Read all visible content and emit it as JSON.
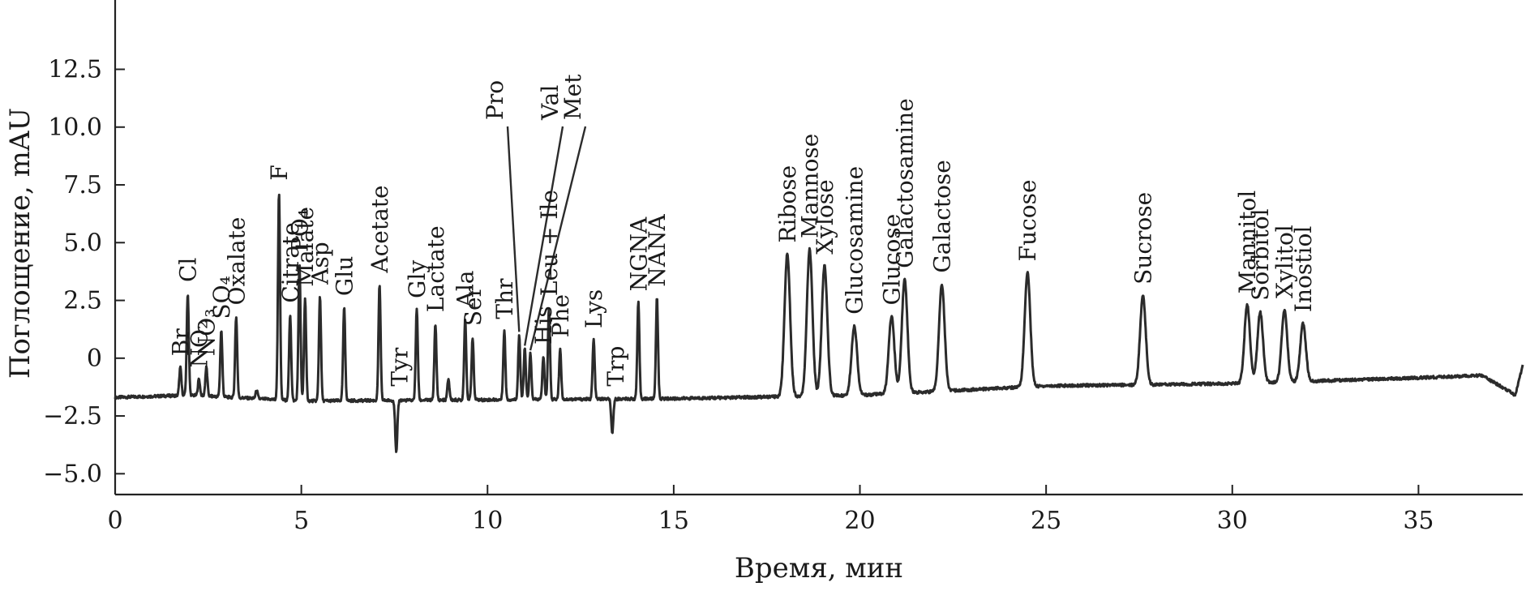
{
  "chart_data": {
    "type": "line",
    "title": "",
    "xlabel": "Время, мин",
    "ylabel": "Поглощение, mAU",
    "xlim": [
      0,
      37.8
    ],
    "ylim": [
      -5.9,
      15.5
    ],
    "xticks": [
      0,
      5,
      10,
      15,
      20,
      25,
      30,
      35
    ],
    "yticks": [
      -5.0,
      -2.5,
      0,
      2.5,
      5.0,
      7.5,
      10.0,
      12.5
    ],
    "ytick_labels": [
      "−5.0",
      "−2.5",
      "0",
      "2.5",
      "5.0",
      "7.5",
      "10.0",
      "12.5"
    ],
    "grid": false,
    "legend": "none",
    "baseline": [
      [
        0,
        -1.7
      ],
      [
        2,
        -1.6
      ],
      [
        5,
        -1.85
      ],
      [
        10,
        -1.8
      ],
      [
        15,
        -1.75
      ],
      [
        20,
        -1.6
      ],
      [
        25,
        -1.2
      ],
      [
        30,
        -1.1
      ],
      [
        35,
        -0.85
      ],
      [
        36.7,
        -0.75
      ],
      [
        37.3,
        -1.3
      ],
      [
        37.6,
        -1.6
      ],
      [
        37.8,
        -0.3
      ]
    ],
    "peaks": [
      {
        "label": "Br",
        "x": 1.75,
        "y": -0.4
      },
      {
        "label": "Cl",
        "x": 1.95,
        "y": 2.8
      },
      {
        "label": "NO₂",
        "x": 2.25,
        "y": -0.9
      },
      {
        "label": "NO₃",
        "x": 2.45,
        "y": -0.4
      },
      {
        "label": "SO₄",
        "x": 2.85,
        "y": 1.2
      },
      {
        "label": "Oxalate",
        "x": 3.25,
        "y": 1.8
      },
      {
        "label": "",
        "x": 3.8,
        "y": -1.4
      },
      {
        "label": "F",
        "x": 4.4,
        "y": 7.2
      },
      {
        "label": "Citrate",
        "x": 4.7,
        "y": 1.9
      },
      {
        "label": "PO₄",
        "x": 4.95,
        "y": 4.1
      },
      {
        "label": "Malate",
        "x": 5.1,
        "y": 2.6
      },
      {
        "label": "Asp",
        "x": 5.5,
        "y": 2.7
      },
      {
        "label": "Glu",
        "x": 6.15,
        "y": 2.2
      },
      {
        "label": "Acetate",
        "x": 7.1,
        "y": 3.2
      },
      {
        "label": "Tyr",
        "x": 7.55,
        "y": -4.1
      },
      {
        "label": "Gly",
        "x": 8.1,
        "y": 2.1
      },
      {
        "label": "Lactate",
        "x": 8.6,
        "y": 1.5
      },
      {
        "label": "",
        "x": 8.95,
        "y": -0.9
      },
      {
        "label": "Ala",
        "x": 9.4,
        "y": 1.7
      },
      {
        "label": "Ser",
        "x": 9.6,
        "y": 0.9
      },
      {
        "label": "Thr",
        "x": 10.45,
        "y": 1.2
      },
      {
        "label": "Pro",
        "x": 10.85,
        "y": 1.0
      },
      {
        "label": "Val",
        "x": 11.0,
        "y": 0.4
      },
      {
        "label": "Met",
        "x": 11.15,
        "y": 0.2
      },
      {
        "label": "His",
        "x": 11.5,
        "y": 0.1
      },
      {
        "label": "Leu + Ile",
        "x": 11.65,
        "y": 2.2
      },
      {
        "label": "Phe",
        "x": 11.95,
        "y": 0.4
      },
      {
        "label": "Lys",
        "x": 12.85,
        "y": 0.8
      },
      {
        "label": "Trp",
        "x": 13.35,
        "y": -3.3
      },
      {
        "label": "NGNA",
        "x": 14.05,
        "y": 2.4
      },
      {
        "label": "NANA",
        "x": 14.55,
        "y": 2.6
      },
      {
        "label": "Ribose",
        "x": 18.05,
        "y": 4.5
      },
      {
        "label": "Mannose",
        "x": 18.65,
        "y": 4.7
      },
      {
        "label": "Xylose",
        "x": 19.05,
        "y": 4.0
      },
      {
        "label": "Glucosamine",
        "x": 19.85,
        "y": 1.4
      },
      {
        "label": "Glucose",
        "x": 20.85,
        "y": 1.8
      },
      {
        "label": "Galactosamine",
        "x": 21.2,
        "y": 3.4
      },
      {
        "label": "Galactose",
        "x": 22.2,
        "y": 3.2
      },
      {
        "label": "Fucose",
        "x": 24.5,
        "y": 3.7
      },
      {
        "label": "Sucrose",
        "x": 27.6,
        "y": 2.7
      },
      {
        "label": "Mannitol",
        "x": 30.4,
        "y": 2.3
      },
      {
        "label": "Sorbitol",
        "x": 30.75,
        "y": 2.0
      },
      {
        "label": "Xylitol",
        "x": 31.4,
        "y": 2.1
      },
      {
        "label": "Inostiol",
        "x": 31.9,
        "y": 1.5
      }
    ]
  }
}
